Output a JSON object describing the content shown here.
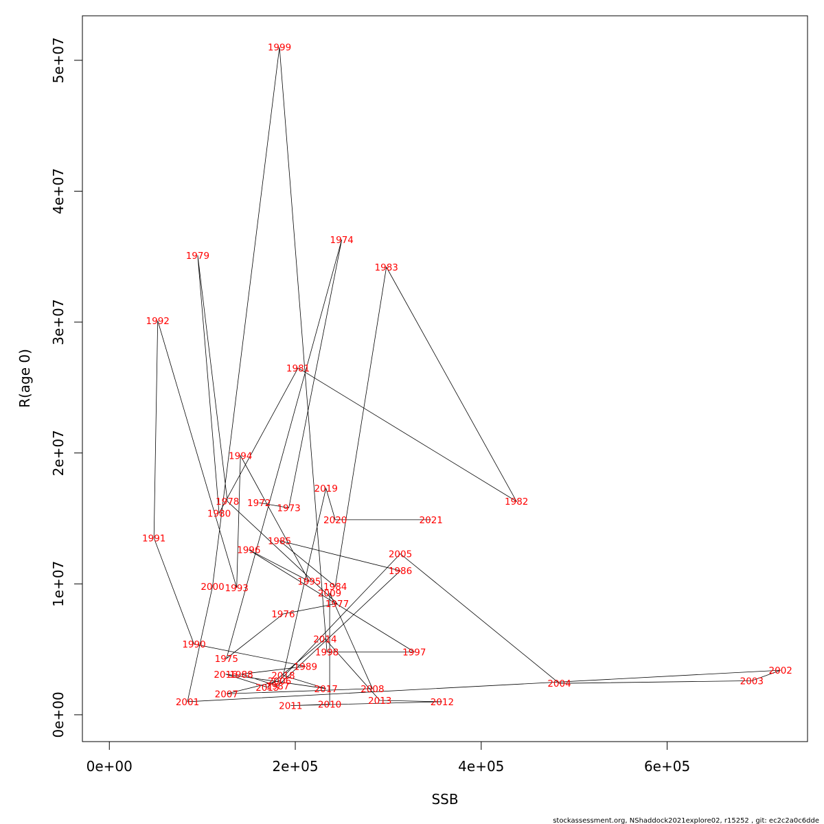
{
  "chart_data": {
    "type": "scatter",
    "xlabel": "SSB",
    "ylabel": "R(age 0)",
    "xlim": [
      -29000,
      751000
    ],
    "ylim": [
      -2050000,
      53400000
    ],
    "x_ticks": [
      0,
      200000,
      400000,
      600000
    ],
    "x_tick_labels": [
      "0e+00",
      "2e+05",
      "4e+05",
      "6e+05"
    ],
    "y_ticks": [
      0,
      10000000,
      20000000,
      30000000,
      40000000,
      50000000
    ],
    "y_tick_labels": [
      "0e+00",
      "1e+07",
      "2e+07",
      "3e+07",
      "4e+07",
      "5e+07"
    ],
    "grid": false,
    "connect_points": true,
    "label_color": "#ff0000",
    "line_color": "#000000",
    "points": [
      {
        "year": "1972",
        "x": 161000,
        "y": 16200000
      },
      {
        "year": "1973",
        "x": 193000,
        "y": 15800000
      },
      {
        "year": "1974",
        "x": 250000,
        "y": 36300000
      },
      {
        "year": "1975",
        "x": 126000,
        "y": 4300000
      },
      {
        "year": "1976",
        "x": 187000,
        "y": 7700000
      },
      {
        "year": "1977",
        "x": 245000,
        "y": 8500000
      },
      {
        "year": "1978",
        "x": 127000,
        "y": 16300000
      },
      {
        "year": "1979",
        "x": 95000,
        "y": 35100000
      },
      {
        "year": "1980",
        "x": 118000,
        "y": 15400000
      },
      {
        "year": "1981",
        "x": 203000,
        "y": 26500000
      },
      {
        "year": "1982",
        "x": 438000,
        "y": 16300000
      },
      {
        "year": "1983",
        "x": 298000,
        "y": 34200000
      },
      {
        "year": "1984",
        "x": 243000,
        "y": 9800000
      },
      {
        "year": "1985",
        "x": 183000,
        "y": 13300000
      },
      {
        "year": "1986",
        "x": 313000,
        "y": 11000000
      },
      {
        "year": "1987",
        "x": 181000,
        "y": 2200000
      },
      {
        "year": "1988",
        "x": 142000,
        "y": 3100000
      },
      {
        "year": "1989",
        "x": 211000,
        "y": 3700000
      },
      {
        "year": "1990",
        "x": 91000,
        "y": 5400000
      },
      {
        "year": "1991",
        "x": 48000,
        "y": 13500000
      },
      {
        "year": "1992",
        "x": 52000,
        "y": 30100000
      },
      {
        "year": "1993",
        "x": 137000,
        "y": 9700000
      },
      {
        "year": "1994",
        "x": 141000,
        "y": 19800000
      },
      {
        "year": "1995",
        "x": 215000,
        "y": 10200000
      },
      {
        "year": "1996",
        "x": 150000,
        "y": 12600000
      },
      {
        "year": "1997",
        "x": 328000,
        "y": 4800000
      },
      {
        "year": "1998",
        "x": 234000,
        "y": 4800000
      },
      {
        "year": "1999",
        "x": 183000,
        "y": 51000000
      },
      {
        "year": "2000",
        "x": 111000,
        "y": 9800000
      },
      {
        "year": "2001",
        "x": 84000,
        "y": 1000000
      },
      {
        "year": "2002",
        "x": 722000,
        "y": 3400000
      },
      {
        "year": "2003",
        "x": 691000,
        "y": 2600000
      },
      {
        "year": "2004",
        "x": 484000,
        "y": 2400000
      },
      {
        "year": "2005",
        "x": 313000,
        "y": 12300000
      },
      {
        "year": "2006",
        "x": 183000,
        "y": 2600000
      },
      {
        "year": "2007",
        "x": 126000,
        "y": 1600000
      },
      {
        "year": "2008",
        "x": 283000,
        "y": 2000000
      },
      {
        "year": "2009",
        "x": 237000,
        "y": 9300000
      },
      {
        "year": "2010",
        "x": 237000,
        "y": 800000
      },
      {
        "year": "2011",
        "x": 195000,
        "y": 700000
      },
      {
        "year": "2012",
        "x": 358000,
        "y": 1000000
      },
      {
        "year": "2013",
        "x": 291000,
        "y": 1100000
      },
      {
        "year": "2014",
        "x": 232000,
        "y": 5800000
      },
      {
        "year": "2015",
        "x": 170000,
        "y": 2100000
      },
      {
        "year": "2016",
        "x": 125000,
        "y": 3100000
      },
      {
        "year": "2017",
        "x": 233000,
        "y": 2000000
      },
      {
        "year": "2018",
        "x": 187000,
        "y": 3000000
      },
      {
        "year": "2019",
        "x": 233000,
        "y": 17300000
      },
      {
        "year": "2020",
        "x": 243000,
        "y": 14900000
      },
      {
        "year": "2021",
        "x": 346000,
        "y": 14900000
      }
    ]
  },
  "footer": "stockassessment.org, NShaddock2021explore02, r15252 , git: ec2c2a0c6dde"
}
